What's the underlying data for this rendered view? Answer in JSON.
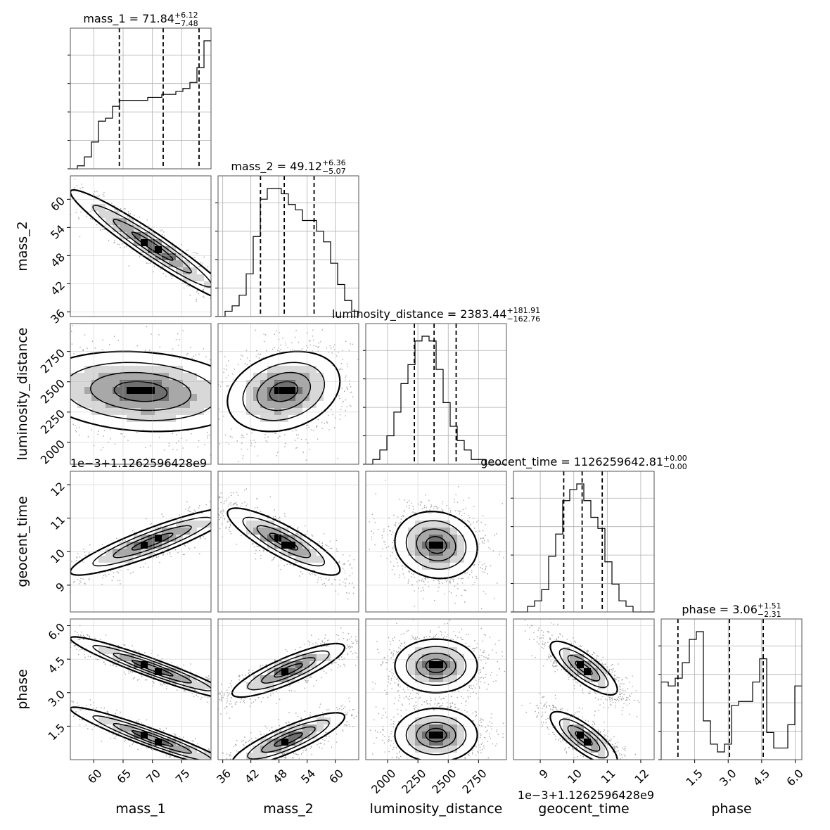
{
  "chart_data": {
    "type": "corner",
    "parameters": [
      "mass_1",
      "mass_2",
      "luminosity_distance",
      "geocent_time",
      "phase"
    ],
    "axis_labels": [
      "mass_1",
      "mass_2",
      "luminosity_distance",
      "geocent_time",
      "phase"
    ],
    "ranges": [
      [
        56,
        80
      ],
      [
        35,
        65
      ],
      [
        1820,
        2980
      ],
      [
        8.2,
        12.4
      ],
      [
        0.0,
        6.3
      ]
    ],
    "ticks": [
      {
        "values": [
          60,
          65,
          70,
          75
        ],
        "labels": [
          "60",
          "65",
          "70",
          "75"
        ]
      },
      {
        "values": [
          36,
          42,
          48,
          54,
          60
        ],
        "labels": [
          "36",
          "42",
          "48",
          "54",
          "60"
        ]
      },
      {
        "values": [
          2000,
          2250,
          2500,
          2750
        ],
        "labels": [
          "2000",
          "2250",
          "2500",
          "2750"
        ]
      },
      {
        "values": [
          9,
          10,
          11,
          12
        ],
        "labels": [
          "9",
          "10",
          "11",
          "12"
        ]
      },
      {
        "values": [
          1.5,
          3.0,
          4.5,
          6.0
        ],
        "labels": [
          "1.5",
          "3.0",
          "4.5",
          "6.0"
        ]
      }
    ],
    "offset_text": "1e−3+1.1262596428e9",
    "titles": [
      {
        "name": "mass_1",
        "median": "71.84",
        "plus": "+6.12",
        "minus": "−7.48"
      },
      {
        "name": "mass_2",
        "median": "49.12",
        "plus": "+6.36",
        "minus": "−5.07"
      },
      {
        "name": "luminosity_distance",
        "median": "2383.44",
        "plus": "+181.91",
        "minus": "−162.76"
      },
      {
        "name": "geocent_time",
        "median": "1126259642.81",
        "plus": "+0.00",
        "minus": "−0.00"
      },
      {
        "name": "phase",
        "median": "3.06",
        "plus": "+1.51",
        "minus": "−2.31"
      }
    ],
    "quantiles": [
      [
        64.36,
        71.84,
        77.96
      ],
      [
        44.05,
        49.12,
        55.48
      ],
      [
        2220.68,
        2383.44,
        2565.35
      ],
      [
        9.7,
        10.25,
        10.85
      ],
      [
        0.75,
        3.06,
        4.57
      ]
    ],
    "histograms": [
      {
        "edges_start": 56,
        "bin_width": 1.2,
        "counts": [
          0,
          1,
          4,
          9,
          16,
          17,
          21,
          23,
          23,
          23,
          23,
          24,
          24,
          25,
          25,
          26,
          27,
          29,
          34,
          43
        ]
      },
      {
        "edges_start": 35,
        "bin_width": 1.5,
        "counts": [
          0,
          1,
          2,
          4,
          8,
          15,
          22,
          24,
          24,
          23,
          21,
          20,
          18,
          18,
          16,
          14,
          10,
          6,
          3,
          1
        ]
      },
      {
        "edges_start": 1820,
        "bin_width": 58,
        "counts": [
          0,
          1,
          3,
          6,
          11,
          17,
          21,
          26,
          27,
          26,
          20,
          13,
          8,
          5,
          3,
          1,
          1,
          0,
          0,
          0
        ]
      },
      {
        "edges_start": 8.2,
        "bin_width": 0.21,
        "counts": [
          0,
          0,
          1,
          2,
          4,
          10,
          14,
          20,
          22,
          23,
          20,
          17,
          15,
          9,
          5,
          2,
          1,
          0,
          0,
          0
        ]
      },
      {
        "edges_start": 0.0,
        "bin_width": 0.315,
        "counts": [
          20,
          19,
          21,
          25,
          31,
          33,
          10,
          4,
          2,
          4,
          14,
          15,
          15,
          20,
          26,
          7,
          3,
          3,
          9,
          19
        ]
      }
    ],
    "blobs": [
      {
        "row": 1,
        "col": 0,
        "modes": [
          {
            "mx": 70,
            "my": 50,
            "sx": 7.0,
            "sy": 6.0,
            "rho": -0.96
          }
        ]
      },
      {
        "row": 2,
        "col": 0,
        "modes": [
          {
            "mx": 68,
            "my": 2420,
            "sx": 9.0,
            "sy": 165,
            "rho": -0.15
          }
        ]
      },
      {
        "row": 2,
        "col": 1,
        "modes": [
          {
            "mx": 49,
            "my": 2420,
            "sx": 6.0,
            "sy": 165,
            "rho": 0.25
          }
        ]
      },
      {
        "row": 3,
        "col": 0,
        "modes": [
          {
            "mx": 70,
            "my": 10.3,
            "sx": 7.0,
            "sy": 0.5,
            "rho": 0.9
          }
        ]
      },
      {
        "row": 3,
        "col": 1,
        "modes": [
          {
            "mx": 49,
            "my": 10.3,
            "sx": 6.0,
            "sy": 0.5,
            "rho": -0.85
          }
        ]
      },
      {
        "row": 3,
        "col": 2,
        "modes": [
          {
            "mx": 2400,
            "my": 10.2,
            "sx": 170,
            "sy": 0.5,
            "rho": -0.1
          }
        ]
      },
      {
        "row": 3,
        "col": 3,
        "modes": []
      },
      {
        "row": 4,
        "col": 0,
        "modes": [
          {
            "mx": 70,
            "my": 4.1,
            "sx": 7.0,
            "sy": 0.7,
            "rho": -0.95
          },
          {
            "mx": 70,
            "my": 0.95,
            "sx": 7.0,
            "sy": 0.7,
            "rho": -0.95
          }
        ]
      },
      {
        "row": 4,
        "col": 1,
        "modes": [
          {
            "mx": 50,
            "my": 4.0,
            "sx": 6.0,
            "sy": 0.6,
            "rho": 0.85
          },
          {
            "mx": 50,
            "my": 0.9,
            "sx": 6.0,
            "sy": 0.6,
            "rho": 0.85
          }
        ]
      },
      {
        "row": 4,
        "col": 2,
        "modes": [
          {
            "mx": 2400,
            "my": 4.2,
            "sx": 170,
            "sy": 0.6,
            "rho": 0
          },
          {
            "mx": 2400,
            "my": 1.1,
            "sx": 170,
            "sy": 0.6,
            "rho": 0
          }
        ]
      },
      {
        "row": 4,
        "col": 3,
        "modes": [
          {
            "mx": 10.3,
            "my": 4.1,
            "sx": 0.5,
            "sy": 0.6,
            "rho": -0.8
          },
          {
            "mx": 10.3,
            "my": 0.95,
            "sx": 0.5,
            "sy": 0.6,
            "rho": -0.8
          }
        ]
      }
    ],
    "grid": true,
    "colors": {
      "ink": "#000000",
      "grid": "#b0b0b0",
      "density": "#000000",
      "background": "#ffffff"
    }
  }
}
